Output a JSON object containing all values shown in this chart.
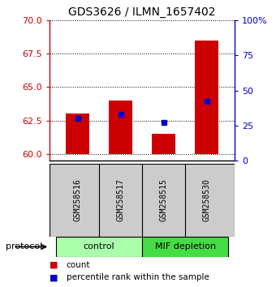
{
  "title": "GDS3626 / ILMN_1657402",
  "samples": [
    "GSM258516",
    "GSM258517",
    "GSM258515",
    "GSM258530"
  ],
  "red_values": [
    63.0,
    64.0,
    61.5,
    68.5
  ],
  "blue_values": [
    30.0,
    33.0,
    27.0,
    42.0
  ],
  "red_baseline": 60.0,
  "ylim_left": [
    59.5,
    70.0
  ],
  "ylim_right": [
    0,
    100
  ],
  "yticks_left": [
    60,
    62.5,
    65,
    67.5,
    70
  ],
  "yticks_right": [
    0,
    25,
    50,
    75,
    100
  ],
  "yticklabels_right": [
    "0",
    "25",
    "50",
    "75",
    "100%"
  ],
  "groups": [
    {
      "label": "control",
      "color": "#aaffaa",
      "samples": [
        "GSM258516",
        "GSM258517"
      ]
    },
    {
      "label": "MIF depletion",
      "color": "#44dd44",
      "samples": [
        "GSM258515",
        "GSM258530"
      ]
    }
  ],
  "red_color": "#cc0000",
  "blue_color": "#0000cc",
  "bar_width": 0.55,
  "background_color": "#ffffff",
  "plot_bg": "#ffffff",
  "left_axis_color": "#cc0000",
  "right_axis_color": "#0000cc",
  "label_count": "count",
  "label_percentile": "percentile rank within the sample",
  "protocol_label": "protocol",
  "gray_box_color": "#cccccc"
}
